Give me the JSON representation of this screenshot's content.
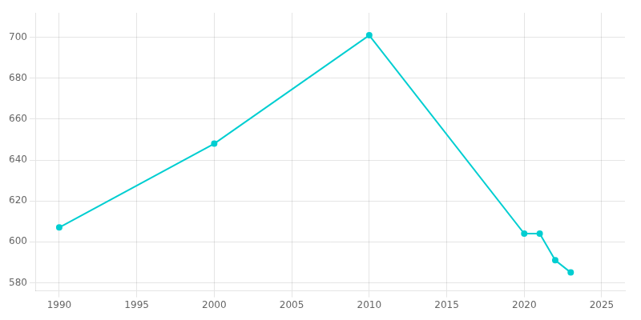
{
  "chart_data": {
    "type": "line",
    "x": [
      1990,
      2000,
      2010,
      2020,
      2021,
      2022,
      2023
    ],
    "values": [
      607,
      648,
      701,
      604,
      604,
      591,
      585
    ],
    "color": "#00CED1",
    "xlim": [
      1988.5,
      2026.5
    ],
    "ylim": [
      576,
      712
    ],
    "xticks": [
      1990,
      1995,
      2000,
      2005,
      2010,
      2015,
      2020,
      2025
    ],
    "yticks": [
      580,
      600,
      620,
      640,
      660,
      680,
      700
    ],
    "grid": true
  }
}
